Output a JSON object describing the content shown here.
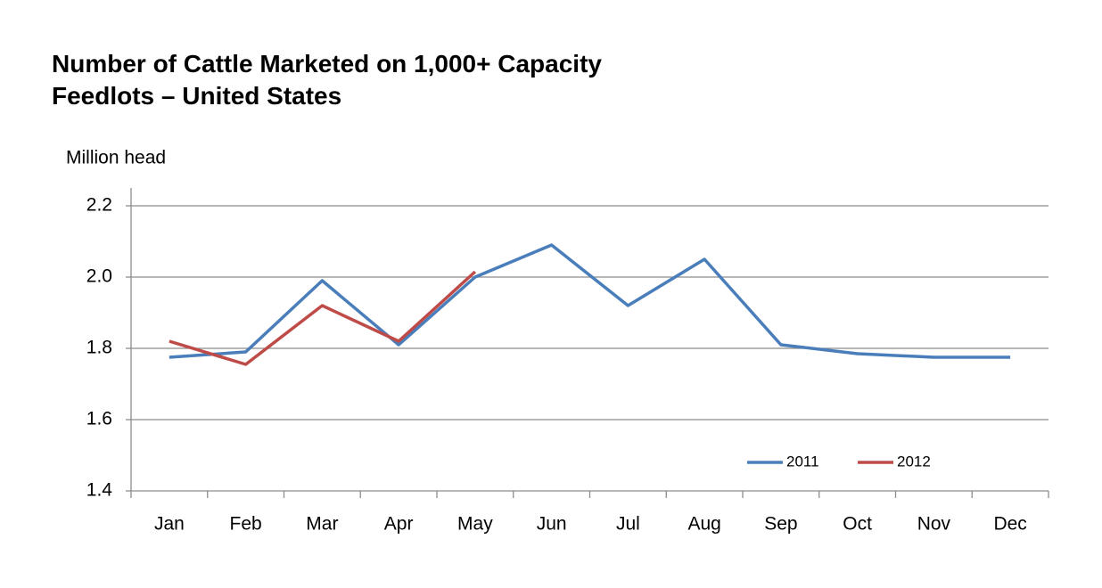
{
  "chart_data": {
    "type": "line",
    "title": "Number of Cattle Marketed on 1,000+ Capacity Feedlots – United States",
    "y_label": "Million head",
    "categories": [
      "Jan",
      "Feb",
      "Mar",
      "Apr",
      "May",
      "Jun",
      "Jul",
      "Aug",
      "Sep",
      "Oct",
      "Nov",
      "Dec"
    ],
    "series": [
      {
        "name": "2011",
        "color": "#4a7ebb",
        "values": [
          1.775,
          1.79,
          1.99,
          1.81,
          2.0,
          2.09,
          1.92,
          2.05,
          1.81,
          1.785,
          1.775,
          1.775
        ]
      },
      {
        "name": "2012",
        "color": "#be4b48",
        "values": [
          1.82,
          1.755,
          1.92,
          1.82,
          2.015,
          null,
          null,
          null,
          null,
          null,
          null,
          null
        ]
      }
    ],
    "ylim": [
      1.4,
      2.2
    ],
    "yticks": [
      1.4,
      1.6,
      1.8,
      {
        "value": 2.0,
        "label": "2.0"
      },
      2.2
    ],
    "grid": true,
    "legend": "lower-right"
  }
}
